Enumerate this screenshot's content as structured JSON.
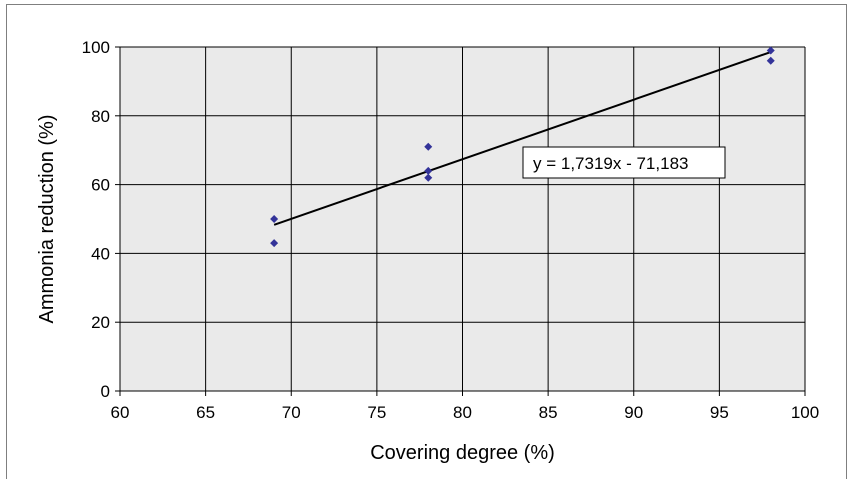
{
  "chart_data": {
    "type": "scatter",
    "title": "",
    "xlabel": "Covering degree (%)",
    "ylabel": "Ammonia reduction (%)",
    "xlim": [
      60,
      100
    ],
    "ylim": [
      0,
      100
    ],
    "xticks": [
      60,
      65,
      70,
      75,
      80,
      85,
      90,
      95,
      100
    ],
    "yticks": [
      0,
      20,
      40,
      60,
      80,
      100
    ],
    "grid": true,
    "legend": "none",
    "series": [
      {
        "points": [
          {
            "x": 69,
            "y": 50
          },
          {
            "x": 69,
            "y": 43
          },
          {
            "x": 78,
            "y": 71
          },
          {
            "x": 78,
            "y": 64
          },
          {
            "x": 78,
            "y": 62
          },
          {
            "x": 98,
            "y": 99
          },
          {
            "x": 98,
            "y": 96
          }
        ],
        "color": "#333399"
      }
    ],
    "trendline": {
      "type": "linear",
      "slope": 1.7319,
      "intercept": -71.183,
      "x_range": [
        69,
        98
      ],
      "label": "y = 1,7319x - 71,183",
      "color": "#000000"
    },
    "plot_background": "#eaeaea",
    "grid_color": "#000000"
  }
}
